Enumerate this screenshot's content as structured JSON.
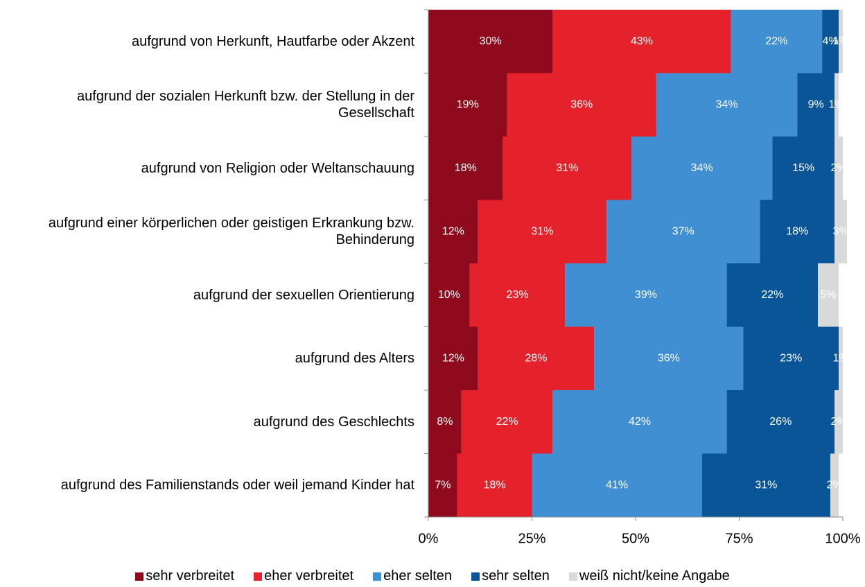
{
  "chart_data": {
    "type": "stacked-bar-horizontal",
    "categories": [
      "aufgrund von Herkunft, Hautfarbe oder Akzent",
      "aufgrund der sozialen Herkunft bzw. der Stellung in der Gesellschaft",
      "aufgrund von Religion oder Weltanschauung",
      "aufgrund einer körperlichen oder geistigen Erkrankung bzw. Behinderung",
      "aufgrund der sexuellen Orientierung",
      "aufgrund des Alters",
      "aufgrund des Geschlechts",
      "aufgrund des Familienstands oder weil jemand Kinder hat"
    ],
    "series": [
      {
        "name": "sehr verbreitet",
        "color": "#8e0a1c",
        "values": [
          30,
          19,
          18,
          12,
          10,
          12,
          8,
          7
        ],
        "value_labels": [
          "30%",
          "19%",
          "18%",
          "12%",
          "10%",
          "12%",
          "8%",
          "7%"
        ]
      },
      {
        "name": "eher verbreitet",
        "color": "#e5222b",
        "values": [
          43,
          36,
          31,
          31,
          23,
          28,
          22,
          18
        ],
        "value_labels": [
          "43%",
          "36%",
          "31%",
          "31%",
          "23%",
          "28%",
          "22%",
          "18%"
        ]
      },
      {
        "name": "eher selten",
        "color": "#3f8fd2",
        "values": [
          22,
          34,
          34,
          37,
          39,
          36,
          42,
          41
        ],
        "value_labels": [
          "22%",
          "34%",
          "34%",
          "37%",
          "39%",
          "36%",
          "42%",
          "41%"
        ]
      },
      {
        "name": "sehr selten",
        "color": "#0a5498",
        "values": [
          4,
          9,
          15,
          18,
          22,
          23,
          26,
          31
        ],
        "value_labels": [
          "4%",
          "9%",
          "15%",
          "18%",
          "22%",
          "23%",
          "26%",
          "31%"
        ]
      },
      {
        "name": "weiß nicht/keine Angabe",
        "color": "#d9d9d9",
        "values": [
          1,
          1,
          2,
          3,
          5,
          1,
          2,
          2
        ],
        "value_labels": [
          "1%",
          "1%",
          "2%",
          "3%",
          "5%",
          "1%",
          "2%",
          "2%"
        ]
      }
    ],
    "xlim": [
      0,
      100
    ],
    "xticks": [
      {
        "value": 0,
        "label": "0%"
      },
      {
        "value": 25,
        "label": "25%"
      },
      {
        "value": 50,
        "label": "50%"
      },
      {
        "value": 75,
        "label": "75%"
      },
      {
        "value": 100,
        "label": "100%"
      }
    ],
    "legend": "bottom"
  }
}
